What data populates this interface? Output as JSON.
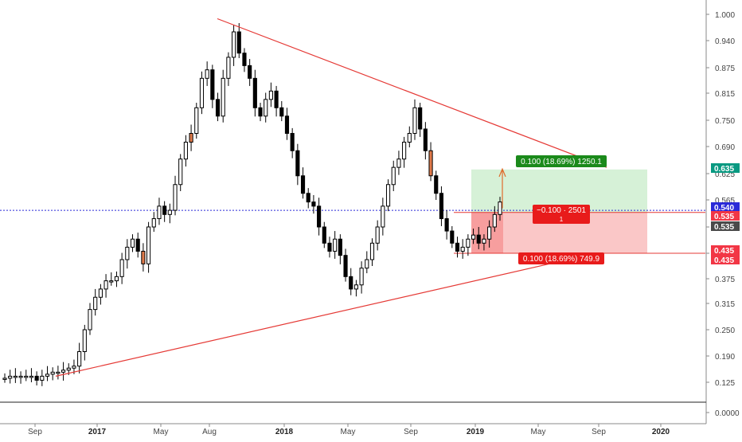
{
  "chart_data": {
    "type": "candlestick",
    "title": "",
    "xlabel": "",
    "ylabel": "",
    "ylim": [
      -0.02,
      1.02
    ],
    "y_ticks": [
      "1.000",
      "0.940",
      "0.875",
      "0.815",
      "0.750",
      "0.690",
      "0.625",
      "0.565",
      "0.500",
      "0.435",
      "0.375",
      "0.315",
      "0.250",
      "0.190",
      "0.125",
      "0.0000"
    ],
    "x_ticks": [
      "Sep",
      "2017",
      "May",
      "Aug",
      "2018",
      "May",
      "Sep",
      "2019",
      "May",
      "Sep",
      "2020"
    ],
    "grid": false,
    "candles_approx_close": [
      0.135,
      0.14,
      0.14,
      0.14,
      0.14,
      0.14,
      0.13,
      0.14,
      0.145,
      0.15,
      0.15,
      0.155,
      0.16,
      0.165,
      0.2,
      0.25,
      0.3,
      0.33,
      0.35,
      0.37,
      0.37,
      0.38,
      0.42,
      0.45,
      0.47,
      0.44,
      0.41,
      0.5,
      0.52,
      0.55,
      0.53,
      0.54,
      0.6,
      0.66,
      0.7,
      0.72,
      0.78,
      0.85,
      0.87,
      0.8,
      0.76,
      0.85,
      0.9,
      0.96,
      0.91,
      0.88,
      0.85,
      0.78,
      0.76,
      0.8,
      0.82,
      0.78,
      0.76,
      0.72,
      0.68,
      0.62,
      0.58,
      0.56,
      0.55,
      0.5,
      0.46,
      0.44,
      0.47,
      0.43,
      0.38,
      0.35,
      0.36,
      0.4,
      0.42,
      0.46,
      0.5,
      0.55,
      0.6,
      0.64,
      0.66,
      0.7,
      0.72,
      0.78,
      0.73,
      0.68,
      0.62,
      0.58,
      0.52,
      0.49,
      0.46,
      0.44,
      0.45,
      0.47,
      0.48,
      0.46,
      0.47,
      0.5,
      0.53,
      0.56
    ],
    "trendlines": [
      {
        "from": [
          "2017-08",
          0.99
        ],
        "to": [
          "2019-09",
          0.64
        ],
        "color": "#e53935"
      },
      {
        "from": [
          "2016-11",
          0.14
        ],
        "to": [
          "2019-03",
          0.41
        ],
        "color": "#e53935"
      }
    ],
    "price_line": {
      "value": 0.54,
      "color": "#2a2ad8"
    },
    "position": {
      "type": "long",
      "entry": 0.535,
      "target": 0.635,
      "stop": 0.435,
      "target_label": "0.100 (18.69%) 1250.1",
      "stop_label": "0.100 (18.69%) 749.9",
      "center_label": "−0.100 · 2501",
      "center_sublabel": "1"
    },
    "price_badges": [
      {
        "label": "0.635",
        "bg": "#089981",
        "fg": "#ffffff"
      },
      {
        "label": "0.540",
        "bg": "#2a2ad8",
        "fg": "#ffffff"
      },
      {
        "label": "0.535",
        "bg": "#f23645",
        "fg": "#ffffff"
      },
      {
        "label": "0.535",
        "bg": "#4a4a4a",
        "fg": "#ffffff"
      },
      {
        "label": "0.435",
        "bg": "#f23645",
        "fg": "#ffffff"
      },
      {
        "label": "0.435",
        "bg": "#f23645",
        "fg": "#ffffff"
      }
    ],
    "colors": {
      "up_candle": "#ffffff",
      "down_candle": "#000000",
      "trendline": "#e53935",
      "profit_zone": "#c8ecc9",
      "loss_zone": "#f8b4b4",
      "axis_text": "#444444",
      "bold_tick": "#222222"
    }
  }
}
